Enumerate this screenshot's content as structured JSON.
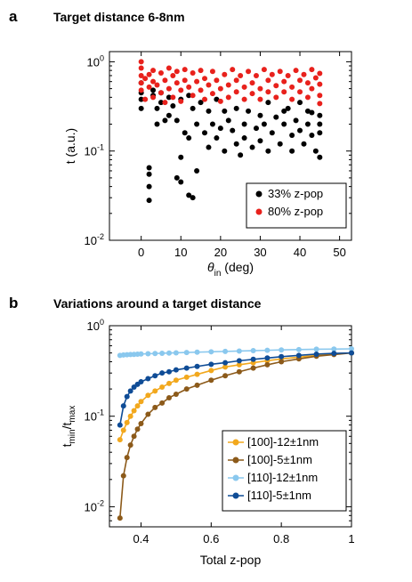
{
  "chart_data": [
    {
      "panel": "a",
      "type": "scatter",
      "title": "Target distance 6-8nm",
      "xlabel": "θin (deg)",
      "xlabel_main": "θ",
      "xlabel_sub": "in",
      "xlabel_rest": " (deg)",
      "ylabel": "t (a.u.)",
      "xlim": [
        -8,
        53
      ],
      "ylim": [
        0.01,
        1.3
      ],
      "yscale": "log",
      "xticks": [
        0,
        10,
        20,
        30,
        40,
        50
      ],
      "xtick_labels": [
        "0",
        "10",
        "20",
        "30",
        "40",
        "50"
      ],
      "yticks": [
        {
          "value": 0.01,
          "base": "10",
          "exp": "-2"
        },
        {
          "value": 0.1,
          "base": "10",
          "exp": "-1"
        },
        {
          "value": 1,
          "base": "10",
          "exp": "0"
        }
      ],
      "legend_position": "lower-right",
      "series": [
        {
          "name": "33% z-pop",
          "color": "#000000",
          "points": [
            [
              0,
              0.58
            ],
            [
              0,
              0.45
            ],
            [
              0,
              0.38
            ],
            [
              0,
              0.3
            ],
            [
              2,
              0.065
            ],
            [
              2,
              0.055
            ],
            [
              2,
              0.04
            ],
            [
              2,
              0.028
            ],
            [
              3,
              0.48
            ],
            [
              3,
              0.42
            ],
            [
              4,
              0.3
            ],
            [
              4,
              0.2
            ],
            [
              5,
              0.45
            ],
            [
              5,
              0.35
            ],
            [
              6,
              0.22
            ],
            [
              7,
              0.4
            ],
            [
              7,
              0.25
            ],
            [
              8,
              0.32
            ],
            [
              9,
              0.22
            ],
            [
              9,
              0.05
            ],
            [
              10,
              0.38
            ],
            [
              10,
              0.085
            ],
            [
              10,
              0.045
            ],
            [
              11,
              0.16
            ],
            [
              12,
              0.42
            ],
            [
              12,
              0.14
            ],
            [
              12,
              0.032
            ],
            [
              13,
              0.3
            ],
            [
              13,
              0.03
            ],
            [
              14,
              0.2
            ],
            [
              14,
              0.06
            ],
            [
              15,
              0.35
            ],
            [
              16,
              0.16
            ],
            [
              17,
              0.28
            ],
            [
              17,
              0.11
            ],
            [
              18,
              0.2
            ],
            [
              19,
              0.38
            ],
            [
              19,
              0.14
            ],
            [
              20,
              0.18
            ],
            [
              21,
              0.28
            ],
            [
              21,
              0.1
            ],
            [
              22,
              0.22
            ],
            [
              23,
              0.17
            ],
            [
              24,
              0.3
            ],
            [
              24,
              0.12
            ],
            [
              25,
              0.09
            ],
            [
              26,
              0.2
            ],
            [
              26,
              0.14
            ],
            [
              27,
              0.28
            ],
            [
              28,
              0.11
            ],
            [
              29,
              0.18
            ],
            [
              30,
              0.25
            ],
            [
              30,
              0.13
            ],
            [
              31,
              0.2
            ],
            [
              32,
              0.35
            ],
            [
              32,
              0.1
            ],
            [
              33,
              0.16
            ],
            [
              34,
              0.24
            ],
            [
              35,
              0.12
            ],
            [
              36,
              0.28
            ],
            [
              36,
              0.2
            ],
            [
              37,
              0.3
            ],
            [
              38,
              0.15
            ],
            [
              38,
              0.1
            ],
            [
              39,
              0.22
            ],
            [
              40,
              0.35
            ],
            [
              40,
              0.17
            ],
            [
              41,
              0.12
            ],
            [
              42,
              0.28
            ],
            [
              42,
              0.2
            ],
            [
              43,
              0.15
            ],
            [
              43,
              0.27
            ],
            [
              44,
              0.1
            ],
            [
              45,
              0.25
            ],
            [
              45,
              0.2
            ],
            [
              45,
              0.16
            ],
            [
              45,
              0.085
            ]
          ]
        },
        {
          "name": "80% z-pop",
          "color": "#e8211c",
          "points": [
            [
              0,
              1.0
            ],
            [
              0,
              0.85
            ],
            [
              0,
              0.7
            ],
            [
              0,
              0.58
            ],
            [
              0,
              0.48
            ],
            [
              1,
              0.65
            ],
            [
              1,
              0.38
            ],
            [
              2,
              0.72
            ],
            [
              2,
              0.52
            ],
            [
              3,
              0.8
            ],
            [
              3,
              0.6
            ],
            [
              3,
              0.4
            ],
            [
              4,
              0.55
            ],
            [
              5,
              0.75
            ],
            [
              5,
              0.45
            ],
            [
              6,
              0.62
            ],
            [
              6,
              0.35
            ],
            [
              7,
              0.85
            ],
            [
              7,
              0.5
            ],
            [
              8,
              0.7
            ],
            [
              8,
              0.4
            ],
            [
              9,
              0.78
            ],
            [
              9,
              0.58
            ],
            [
              10,
              0.48
            ],
            [
              10,
              0.36
            ],
            [
              11,
              0.82
            ],
            [
              11,
              0.62
            ],
            [
              12,
              0.52
            ],
            [
              13,
              0.75
            ],
            [
              13,
              0.42
            ],
            [
              14,
              0.6
            ],
            [
              15,
              0.8
            ],
            [
              15,
              0.48
            ],
            [
              16,
              0.38
            ],
            [
              16,
              0.65
            ],
            [
              17,
              0.55
            ],
            [
              18,
              0.78
            ],
            [
              18,
              0.44
            ],
            [
              19,
              0.62
            ],
            [
              20,
              0.5
            ],
            [
              20,
              0.36
            ],
            [
              21,
              0.72
            ],
            [
              22,
              0.55
            ],
            [
              22,
              0.4
            ],
            [
              23,
              0.82
            ],
            [
              24,
              0.62
            ],
            [
              24,
              0.46
            ],
            [
              25,
              0.7
            ],
            [
              26,
              0.52
            ],
            [
              26,
              0.38
            ],
            [
              27,
              0.78
            ],
            [
              28,
              0.58
            ],
            [
              28,
              0.44
            ],
            [
              29,
              0.7
            ],
            [
              30,
              0.5
            ],
            [
              30,
              0.38
            ],
            [
              31,
              0.82
            ],
            [
              32,
              0.62
            ],
            [
              32,
              0.46
            ],
            [
              33,
              0.72
            ],
            [
              34,
              0.54
            ],
            [
              34,
              0.4
            ],
            [
              35,
              0.78
            ],
            [
              36,
              0.6
            ],
            [
              36,
              0.46
            ],
            [
              37,
              0.7
            ],
            [
              38,
              0.52
            ],
            [
              38,
              0.38
            ],
            [
              39,
              0.8
            ],
            [
              40,
              0.62
            ],
            [
              40,
              0.46
            ],
            [
              41,
              0.72
            ],
            [
              42,
              0.58
            ],
            [
              42,
              0.4
            ],
            [
              43,
              0.82
            ],
            [
              43,
              0.5
            ],
            [
              44,
              0.66
            ],
            [
              45,
              0.74
            ],
            [
              45,
              0.56
            ],
            [
              45,
              0.42
            ],
            [
              45,
              0.34
            ]
          ]
        }
      ]
    },
    {
      "panel": "b",
      "type": "line",
      "title": "Variations around a target distance",
      "xlabel": "Total z-pop",
      "ylabel": "tmin/tmax",
      "ylabel_parts": [
        "t",
        "min",
        "/t",
        "max"
      ],
      "xlim": [
        0.31,
        1.0
      ],
      "ylim": [
        0.006,
        1.0
      ],
      "yscale": "log",
      "xticks": [
        0.4,
        0.6,
        0.8,
        1
      ],
      "xtick_labels": [
        "0.4",
        "0.6",
        "0.8",
        "1"
      ],
      "yticks": [
        {
          "value": 0.01,
          "base": "10",
          "exp": "-2"
        },
        {
          "value": 0.1,
          "base": "10",
          "exp": "-1"
        },
        {
          "value": 1,
          "base": "10",
          "exp": "0"
        }
      ],
      "legend_position": "lower-right",
      "x": [
        0.34,
        0.35,
        0.36,
        0.37,
        0.38,
        0.39,
        0.4,
        0.42,
        0.44,
        0.46,
        0.48,
        0.5,
        0.53,
        0.56,
        0.6,
        0.64,
        0.68,
        0.72,
        0.76,
        0.8,
        0.85,
        0.9,
        0.95,
        1.0
      ],
      "series": [
        {
          "name": "[100]-12±1nm",
          "color": "#f2a81d",
          "values": [
            0.055,
            0.07,
            0.085,
            0.1,
            0.115,
            0.13,
            0.145,
            0.17,
            0.19,
            0.21,
            0.23,
            0.25,
            0.27,
            0.29,
            0.32,
            0.35,
            0.37,
            0.39,
            0.41,
            0.43,
            0.45,
            0.47,
            0.49,
            0.5
          ]
        },
        {
          "name": "[100]-5±1nm",
          "color": "#8c5a1a",
          "values": [
            0.0075,
            0.022,
            0.035,
            0.048,
            0.06,
            0.072,
            0.083,
            0.105,
            0.125,
            0.14,
            0.16,
            0.175,
            0.2,
            0.22,
            0.25,
            0.28,
            0.31,
            0.34,
            0.37,
            0.4,
            0.43,
            0.46,
            0.48,
            0.5
          ]
        },
        {
          "name": "[110]-12±1nm",
          "color": "#8ac8ee",
          "values": [
            0.47,
            0.475,
            0.478,
            0.48,
            0.482,
            0.485,
            0.487,
            0.49,
            0.493,
            0.496,
            0.499,
            0.502,
            0.506,
            0.51,
            0.515,
            0.52,
            0.525,
            0.53,
            0.535,
            0.54,
            0.545,
            0.55,
            0.552,
            0.555
          ]
        },
        {
          "name": "[110]-5±1nm",
          "color": "#0f4c96",
          "values": [
            0.08,
            0.13,
            0.165,
            0.19,
            0.21,
            0.225,
            0.24,
            0.26,
            0.28,
            0.3,
            0.31,
            0.325,
            0.34,
            0.355,
            0.375,
            0.39,
            0.41,
            0.425,
            0.44,
            0.455,
            0.47,
            0.485,
            0.495,
            0.5
          ]
        }
      ]
    }
  ]
}
